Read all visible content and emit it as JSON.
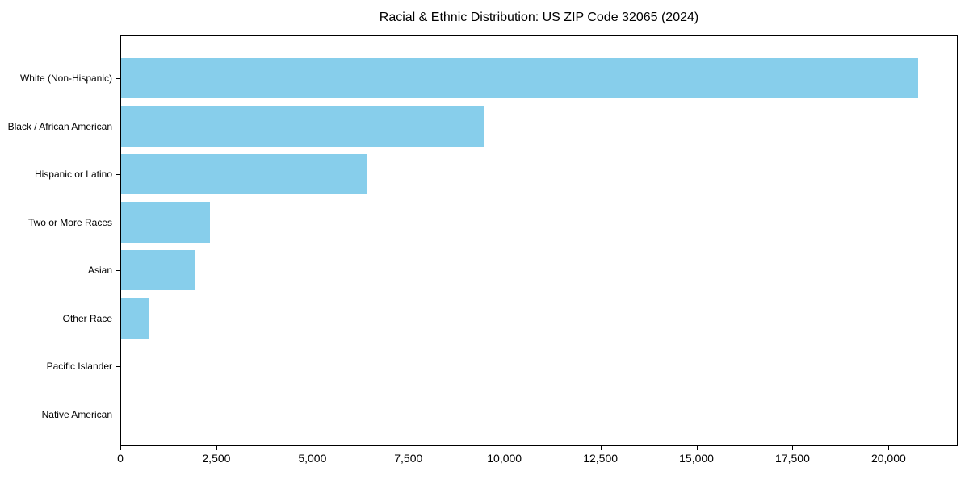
{
  "chart_data": {
    "type": "bar",
    "orientation": "horizontal",
    "title": "Racial & Ethnic Distribution: US ZIP Code 32065 (2024)",
    "categories": [
      "White (Non-Hispanic)",
      "Black / African American",
      "Hispanic or Latino",
      "Two or More Races",
      "Asian",
      "Other Race",
      "Pacific Islander",
      "Native American"
    ],
    "values": [
      20750,
      9470,
      6390,
      2310,
      1910,
      740,
      0,
      0
    ],
    "bar_color": "#87CEEB",
    "xlabel": "",
    "ylabel": "",
    "xlim": [
      0,
      21800
    ],
    "xticks": [
      0,
      2500,
      5000,
      7500,
      10000,
      12500,
      15000,
      17500,
      20000
    ],
    "xtick_labels": [
      "0",
      "2,500",
      "5,000",
      "7,500",
      "10,000",
      "12,500",
      "15,000",
      "17,500",
      "20,000"
    ],
    "grid": false,
    "legend": null,
    "axis_color": "#000000",
    "background_color": "#ffffff"
  }
}
